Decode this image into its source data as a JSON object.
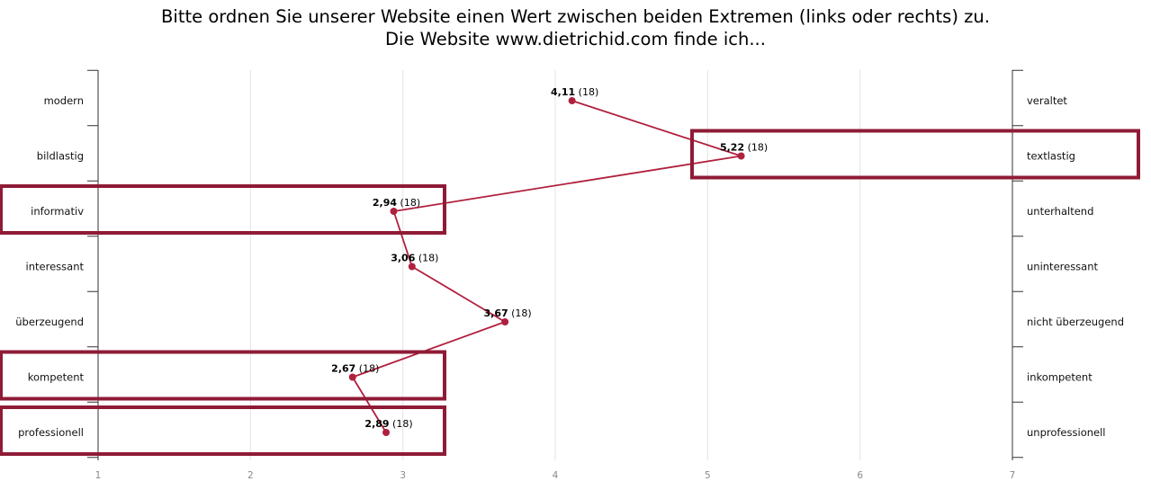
{
  "title_lines": [
    "Bitte ordnen Sie unserer Website einen Wert zwischen beiden Extremen (links oder rechts) zu.",
    "Die Website www.dietrichid.com finde ich..."
  ],
  "colors": {
    "series": "#b0203e",
    "highlight_box": "#8f1b36",
    "grid": "#e4e4e4",
    "axis": "#333333"
  },
  "chart_data": {
    "type": "line",
    "subtype": "semantic-differential",
    "title": "Bitte ordnen Sie unserer Website einen Wert zwischen beiden Extremen (links oder rechts) zu. Die Website www.dietrichid.com finde ich...",
    "x_ticks": [
      "1",
      "2",
      "3",
      "4",
      "5",
      "6",
      "7"
    ],
    "xlim": [
      1,
      7
    ],
    "grid": true,
    "items": [
      {
        "left": "modern",
        "right": "veraltet",
        "value": 4.11,
        "value_label": "4,11",
        "n_label": "(18)"
      },
      {
        "left": "bildlastig",
        "right": "textlastig",
        "value": 5.22,
        "value_label": "5,22",
        "n_label": "(18)"
      },
      {
        "left": "informativ",
        "right": "unterhaltend",
        "value": 2.94,
        "value_label": "2,94",
        "n_label": "(18)"
      },
      {
        "left": "interessant",
        "right": "uninteressant",
        "value": 3.06,
        "value_label": "3,06",
        "n_label": "(18)"
      },
      {
        "left": "überzeugend",
        "right": "nicht überzeugend",
        "value": 3.67,
        "value_label": "3,67",
        "n_label": "(18)"
      },
      {
        "left": "kompetent",
        "right": "inkompetent",
        "value": 2.67,
        "value_label": "2,67",
        "n_label": "(18)"
      },
      {
        "left": "professionell",
        "right": "unprofessionell",
        "value": 2.89,
        "value_label": "2,89",
        "n_label": "(18)"
      }
    ],
    "highlighted_items": [
      "bildlastig",
      "informativ",
      "kompetent",
      "professionell"
    ]
  }
}
